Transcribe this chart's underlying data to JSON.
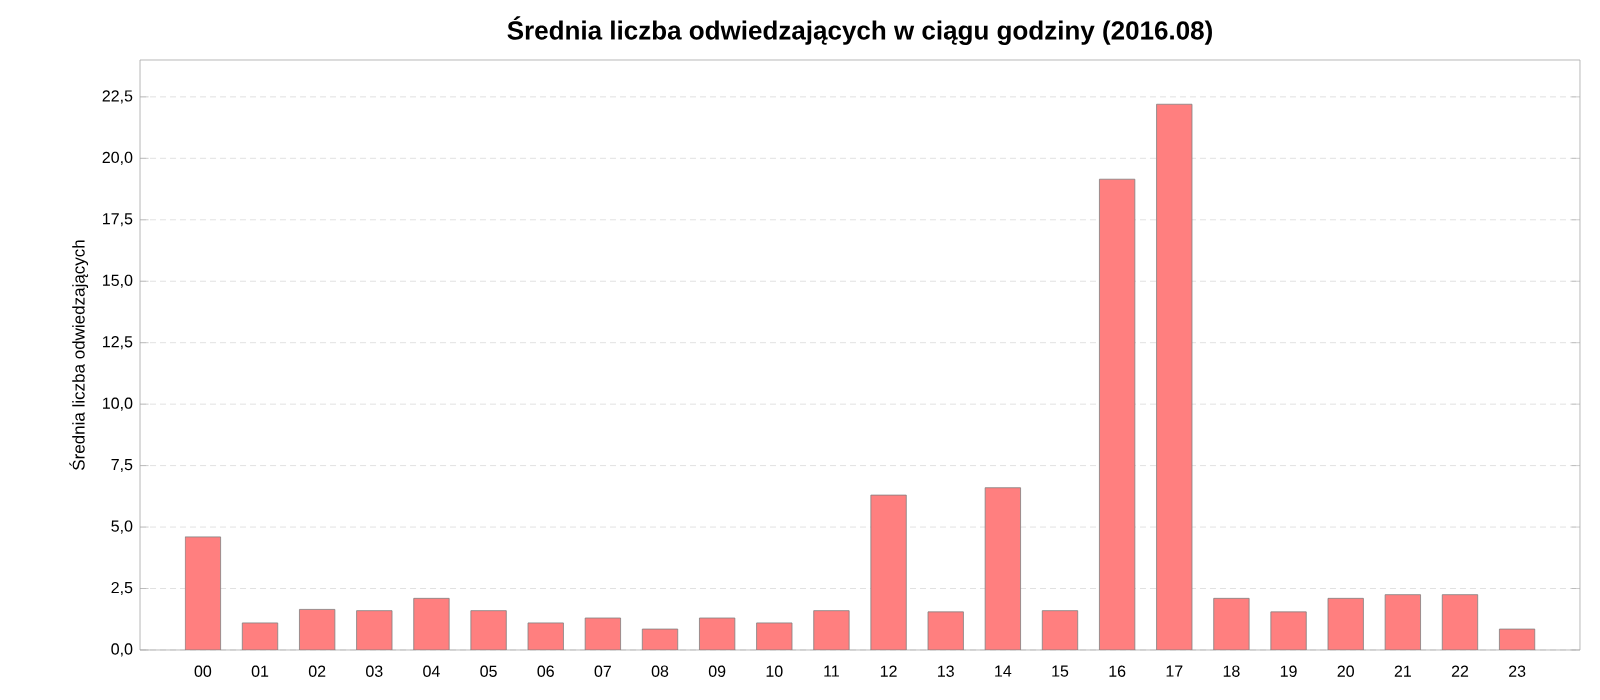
{
  "chart_data": {
    "type": "bar",
    "title": "Średnia liczba odwiedzających w ciągu godziny (2016.08)",
    "ylabel": "Średnia liczba odwiedzających",
    "categories": [
      "00",
      "01",
      "02",
      "03",
      "04",
      "05",
      "06",
      "07",
      "08",
      "09",
      "10",
      "11",
      "12",
      "13",
      "14",
      "15",
      "16",
      "17",
      "18",
      "19",
      "20",
      "21",
      "22",
      "23"
    ],
    "values": [
      4.6,
      1.1,
      1.65,
      1.6,
      2.1,
      1.6,
      1.1,
      1.3,
      0.85,
      1.3,
      1.1,
      1.6,
      6.3,
      1.55,
      6.6,
      1.6,
      19.15,
      22.2,
      2.1,
      1.55,
      2.1,
      2.25,
      2.25,
      0.85
    ],
    "color": "#ff7f7f",
    "ylim": [
      0,
      24
    ],
    "yticks": [
      {
        "value": 0,
        "label": "0,0"
      },
      {
        "value": 2.5,
        "label": "2,5"
      },
      {
        "value": 5,
        "label": "5,0"
      },
      {
        "value": 7.5,
        "label": "7,5"
      },
      {
        "value": 10,
        "label": "10,0"
      },
      {
        "value": 12.5,
        "label": "12,5"
      },
      {
        "value": 15,
        "label": "15,0"
      },
      {
        "value": 17.5,
        "label": "17,5"
      },
      {
        "value": 20,
        "label": "20,0"
      },
      {
        "value": 22.5,
        "label": "22,5"
      }
    ],
    "grid": "y"
  }
}
